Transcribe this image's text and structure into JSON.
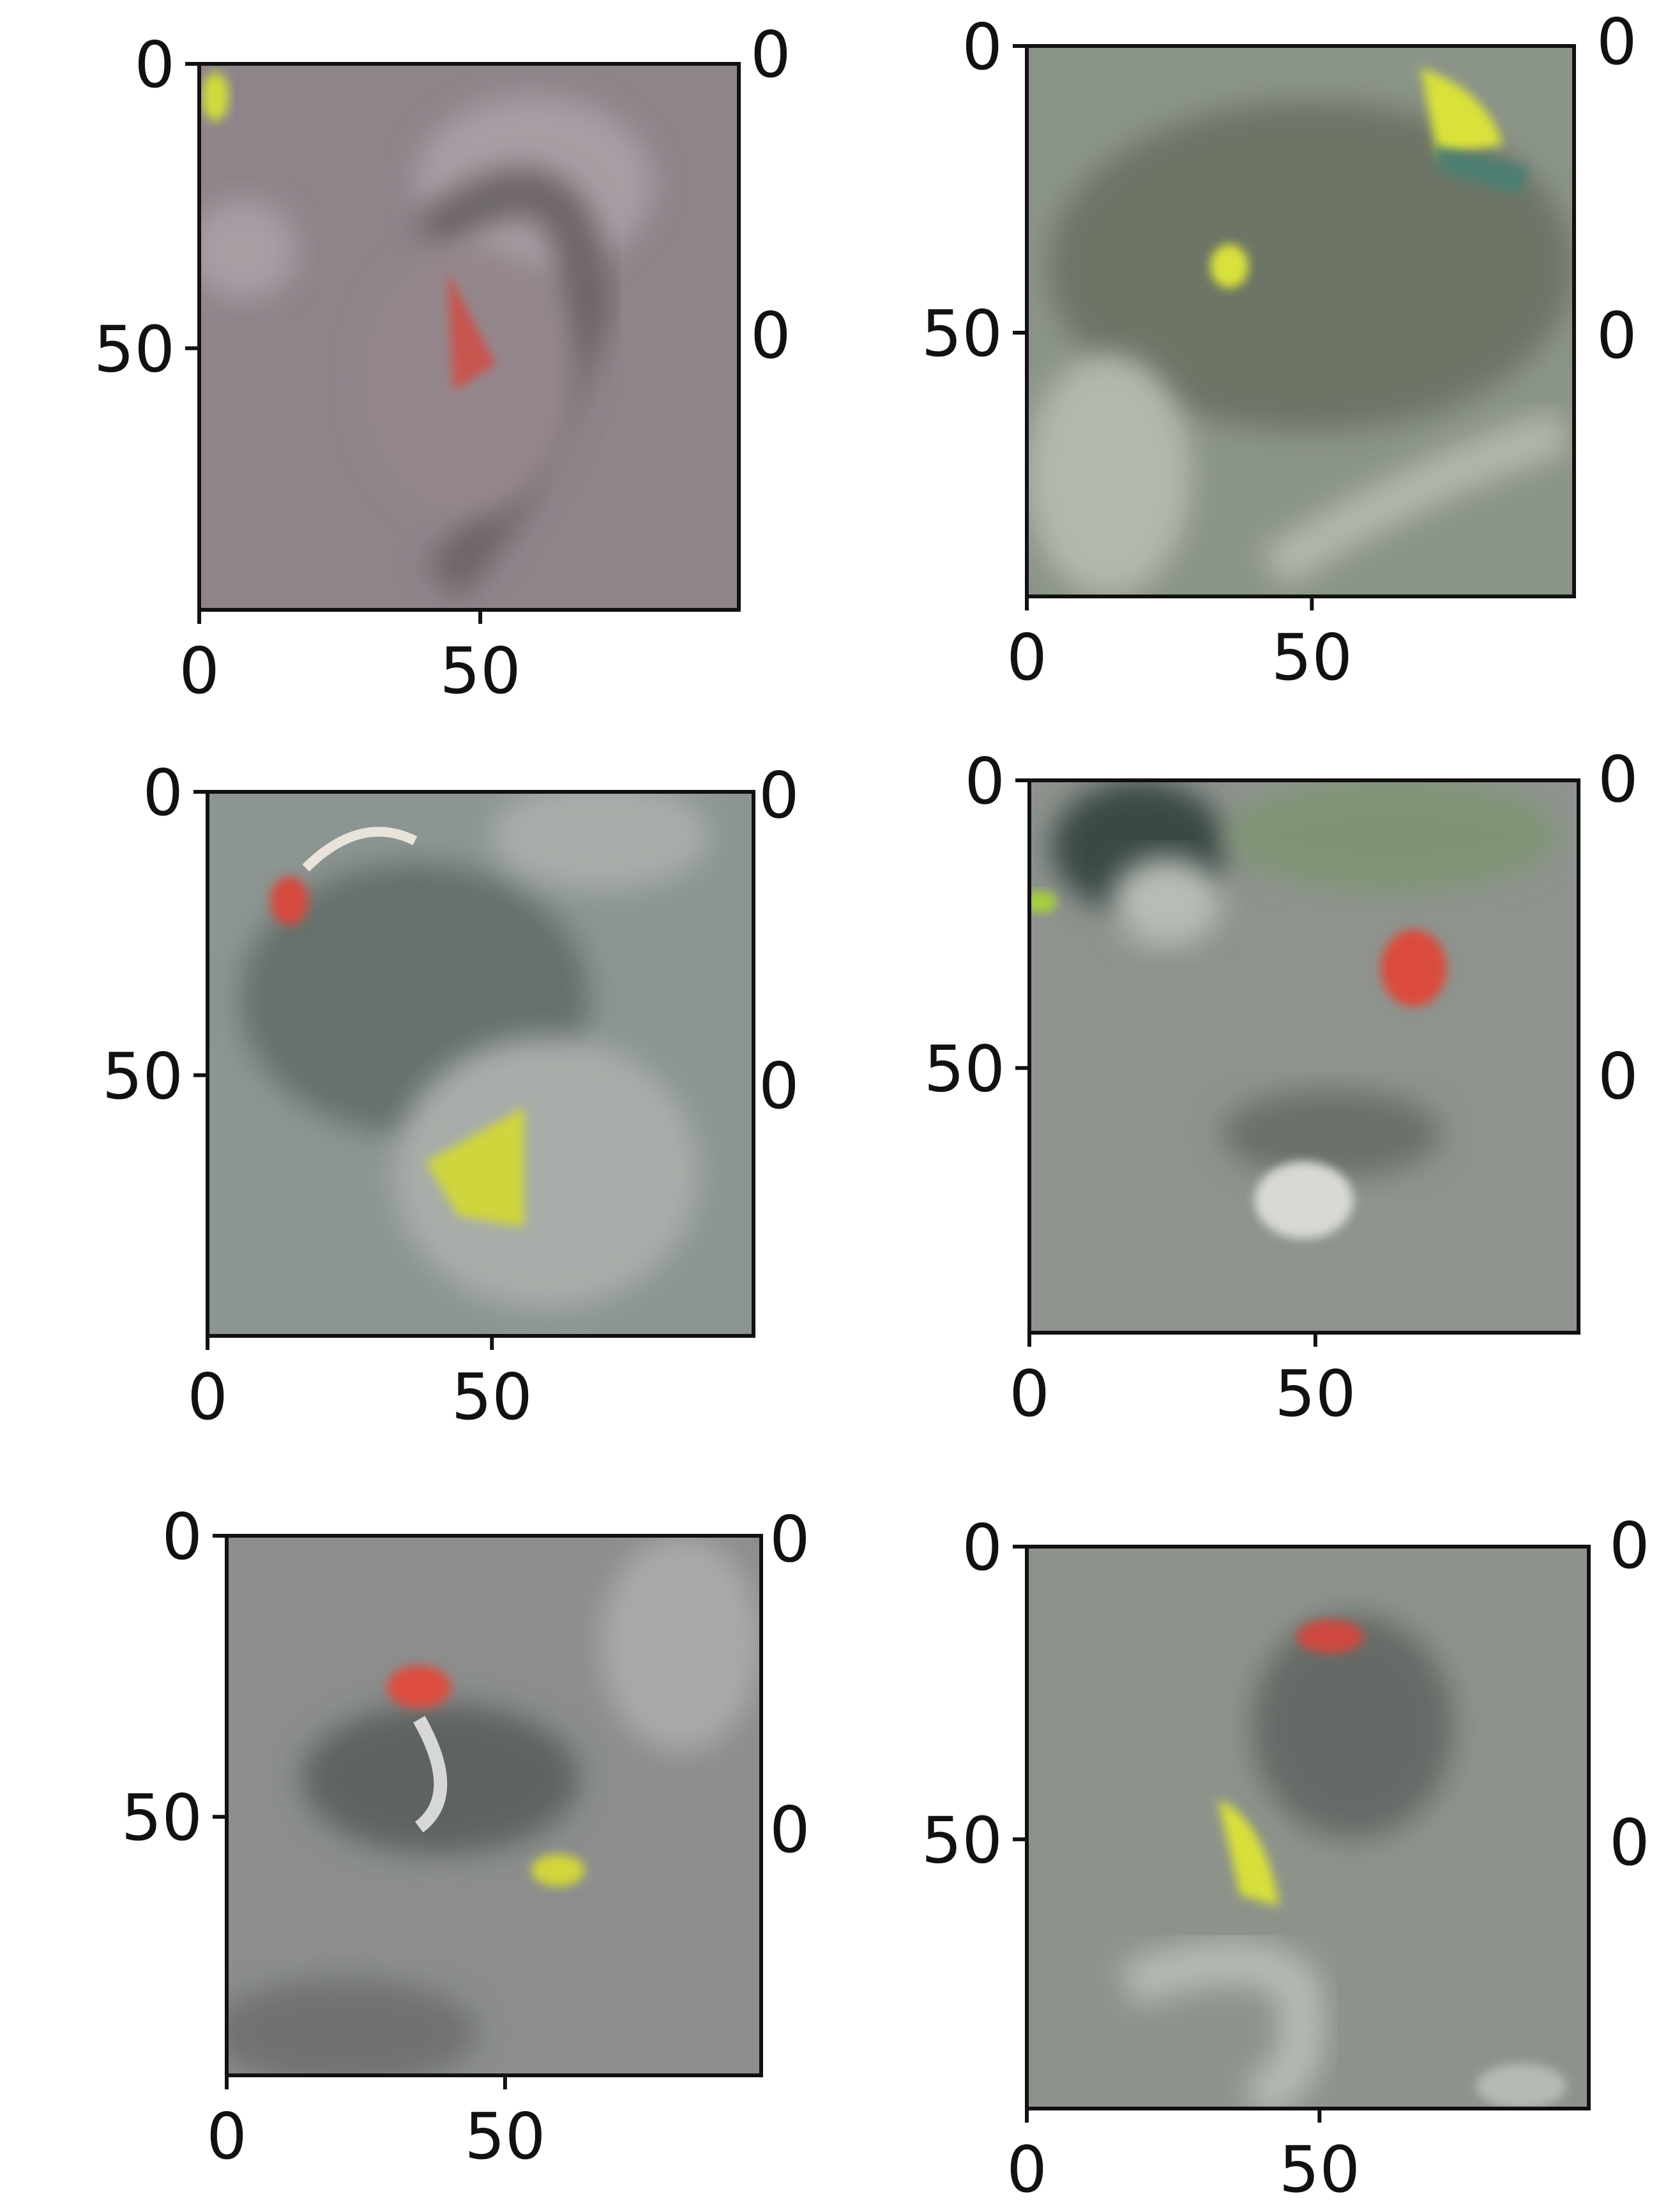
{
  "figure": {
    "panels": [
      {
        "id": "r1c1",
        "palette": {
          "bg": "#8e858b",
          "dark": "#6d6569",
          "light": "#a79ea4",
          "accent_a": "#c9554f",
          "accent_b": "#cfdc3a"
        },
        "xticks": [
          "0",
          "50"
        ],
        "yticks": [
          "0",
          "50"
        ]
      },
      {
        "id": "r1c2",
        "palette": {
          "bg": "#8b9488",
          "dark": "#6c7466",
          "light": "#b2b8ae",
          "accent_a": "#d9e23a",
          "accent_b": "#4d7f72"
        },
        "xticks": [
          "0",
          "50"
        ],
        "yticks": [
          "0",
          "50"
        ]
      },
      {
        "id": "r2c1",
        "palette": {
          "bg": "#8c9592",
          "dark": "#66706c",
          "light": "#a8ada9",
          "accent_a": "#d64a3c",
          "accent_b": "#cfd63c"
        },
        "xticks": [
          "0",
          "50"
        ],
        "yticks": [
          "0",
          "50"
        ]
      },
      {
        "id": "r2c2",
        "palette": {
          "bg": "#8e938e",
          "dark": "#6a6f6a",
          "light": "#b8bcb6",
          "accent_a": "#db4b3c",
          "accent_b": "#a6d03e"
        },
        "xticks": [
          "0",
          "50"
        ],
        "yticks": [
          "0",
          "50"
        ]
      },
      {
        "id": "r3c1",
        "palette": {
          "bg": "#8b8e8d",
          "dark": "#5f6360",
          "light": "#a8aaa8",
          "accent_a": "#dd4d40",
          "accent_b": "#d2d63a"
        },
        "xticks": [
          "0",
          "50"
        ],
        "yticks": [
          "0",
          "50"
        ]
      },
      {
        "id": "r3c2",
        "palette": {
          "bg": "#8d938b",
          "dark": "#656b66",
          "light": "#b5bab2",
          "accent_a": "#cf4a3f",
          "accent_b": "#d8e03a"
        },
        "xticks": [
          "0",
          "50"
        ],
        "yticks": [
          "0",
          "50"
        ]
      }
    ],
    "tick_color": "#111111"
  }
}
